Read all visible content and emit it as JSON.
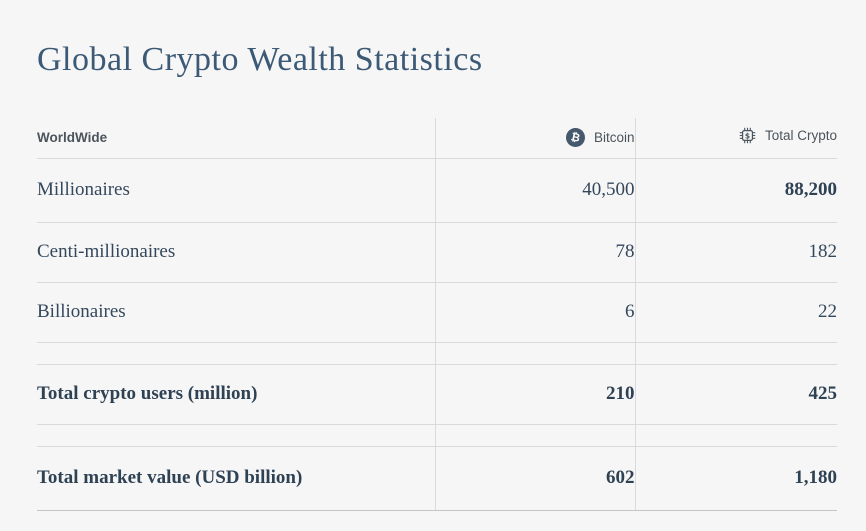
{
  "title": "Global Crypto Wealth Statistics",
  "table": {
    "headers": {
      "worldwide": "WorldWide",
      "bitcoin": "Bitcoin",
      "total_crypto": "Total Crypto"
    },
    "icons": {
      "bitcoin": "bitcoin-icon",
      "total_crypto": "chip-dollar-icon",
      "bitcoin_glyph": "₿",
      "chip_glyph": "$"
    },
    "rows": [
      {
        "cells": [
          {
            "text": "Millionaires",
            "bold": false
          },
          {
            "text": "40,500",
            "bold": false
          },
          {
            "text": "88,200",
            "bold": true
          }
        ]
      },
      {
        "cells": [
          {
            "text": "Centi-millionaires",
            "bold": false
          },
          {
            "text": "78",
            "bold": false
          },
          {
            "text": "182",
            "bold": false
          }
        ]
      },
      {
        "cells": [
          {
            "text": "Billionaires",
            "bold": false
          },
          {
            "text": "6",
            "bold": false
          },
          {
            "text": "22",
            "bold": false
          }
        ]
      },
      {
        "spacer": true
      },
      {
        "cells": [
          {
            "text": "Total crypto users (million)",
            "bold": true
          },
          {
            "text": "210",
            "bold": true
          },
          {
            "text": "425",
            "bold": true
          }
        ]
      },
      {
        "spacer": true
      },
      {
        "cells": [
          {
            "text": "Total market value (USD billion)",
            "bold": true
          },
          {
            "text": "602",
            "bold": true
          },
          {
            "text": "1,180",
            "bold": true
          }
        ]
      }
    ]
  },
  "colors": {
    "background": "#f6f6f7",
    "title": "#3c5a75",
    "text": "#34485c",
    "header_text": "#4b545c",
    "grid_line": "#d9dadc",
    "bitcoin_badge": "#45586c"
  },
  "chart_data": {
    "type": "table",
    "title": "Global Crypto Wealth Statistics",
    "columns": [
      "WorldWide",
      "Bitcoin",
      "Total Crypto"
    ],
    "rows": [
      [
        "Millionaires",
        40500,
        88200
      ],
      [
        "Centi-millionaires",
        78,
        182
      ],
      [
        "Billionaires",
        6,
        22
      ],
      [
        "Total crypto users (million)",
        210,
        425
      ],
      [
        "Total market value (USD billion)",
        602,
        1180
      ]
    ]
  }
}
